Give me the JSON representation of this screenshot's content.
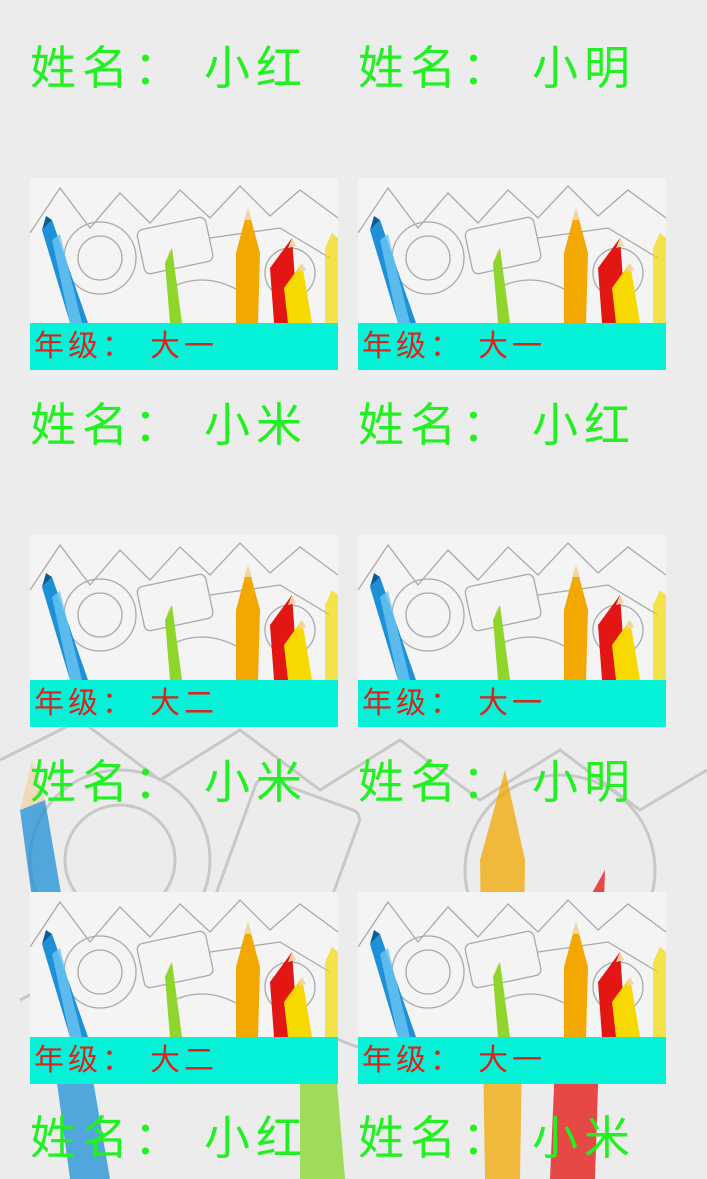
{
  "cards": [
    {
      "name_label": "姓名：",
      "name": "小红",
      "grade_label": "年级：",
      "grade": "大一"
    },
    {
      "name_label": "姓名：",
      "name": "小明",
      "grade_label": "年级：",
      "grade": "大一"
    },
    {
      "name_label": "姓名：",
      "name": "小米",
      "grade_label": "年级：",
      "grade": "大二"
    },
    {
      "name_label": "姓名：",
      "name": "小红",
      "grade_label": "年级：",
      "grade": "大一"
    },
    {
      "name_label": "姓名：",
      "name": "小米",
      "grade_label": "年级：",
      "grade": "大二"
    },
    {
      "name_label": "姓名：",
      "name": "小明",
      "grade_label": "年级：",
      "grade": "大一"
    },
    {
      "name_label": "姓名：",
      "name": "小红"
    },
    {
      "name_label": "姓名：",
      "name": "小米"
    }
  ],
  "colors": {
    "name_text": "#22f022",
    "grade_bar": "#06f2d8",
    "grade_text": "#d7241d",
    "background": "#ececec"
  },
  "icons": [
    "colored-pencils-illustration"
  ]
}
